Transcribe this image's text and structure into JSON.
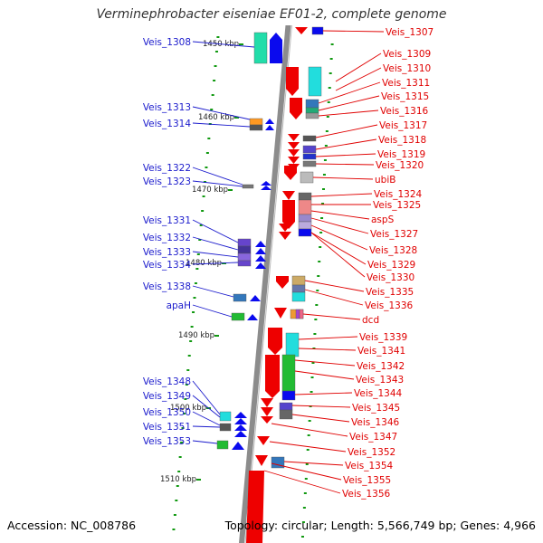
{
  "title": "Verminephrobacter eiseniae EF01-2, complete genome",
  "footer": {
    "accession": "Accession: NC_008786",
    "topology": "Topology: circular; Length: 5,566,749 bp; Genes: 4,966"
  },
  "colors": {
    "left_label": "#1a1acc",
    "right_label": "#e00000",
    "backbone": "#8c8c8c",
    "tick": "#119911"
  },
  "kbp_labels": [
    "1450 kbp",
    "1460 kbp",
    "1470 kbp",
    "1480 kbp",
    "1490 kbp",
    "1500 kbp",
    "1510 kbp"
  ],
  "left_genes": [
    "Veis_1308",
    "Veis_1313",
    "Veis_1314",
    "Veis_1322",
    "Veis_1323",
    "Veis_1331",
    "Veis_1332",
    "Veis_1333",
    "Veis_1334",
    "Veis_1338",
    "apaH",
    "Veis_1348",
    "Veis_1349",
    "Veis_1350",
    "Veis_1351",
    "Veis_1353"
  ],
  "right_genes": [
    "Veis_1307",
    "Veis_1309",
    "Veis_1310",
    "Veis_1311",
    "Veis_1315",
    "Veis_1316",
    "Veis_1317",
    "Veis_1318",
    "Veis_1319",
    "Veis_1320",
    "ubiB",
    "Veis_1324",
    "Veis_1325",
    "aspS",
    "Veis_1327",
    "Veis_1328",
    "Veis_1329",
    "Veis_1330",
    "Veis_1335",
    "Veis_1336",
    "dcd",
    "Veis_1339",
    "Veis_1341",
    "Veis_1342",
    "Veis_1343",
    "Veis_1344",
    "Veis_1345",
    "Veis_1346",
    "Veis_1347",
    "Veis_1352",
    "Veis_1354",
    "Veis_1355",
    "Veis_1356"
  ]
}
